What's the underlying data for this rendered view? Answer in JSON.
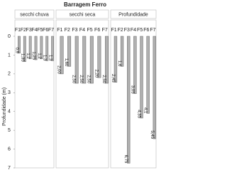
{
  "chart_data": [
    {
      "type": "bar",
      "suptitle": "Barragem Ferro",
      "ylabel": "Profundidade (m)",
      "title": "secchi chuva",
      "categories": [
        "F1",
        "F2",
        "F3",
        "F4",
        "F5",
        "F6",
        "F7"
      ],
      "values": [
        0.9,
        1.35,
        1.2,
        1.25,
        1.2,
        1.3,
        1.3
      ],
      "value_labels": [
        "0,9",
        "1,35",
        "1,2",
        "1,25",
        "1,2",
        "1,3",
        "1,3"
      ],
      "color": "#b0b0b0",
      "ylim": [
        0,
        7
      ],
      "yticks": [
        0,
        1,
        2,
        3,
        4,
        5,
        6,
        7
      ],
      "inverted": true
    },
    {
      "type": "bar",
      "title": "secchi seca",
      "categories": [
        "F1",
        "F2",
        "F3",
        "F4",
        "F5",
        "F6",
        "F7"
      ],
      "values": [
        2.0,
        1.6,
        2.5,
        2.5,
        2.5,
        2.2,
        2.5
      ],
      "value_labels": [
        "2,00",
        "1,60",
        "2,50",
        "2,50",
        "2,50",
        "2,20",
        "2,50"
      ],
      "color": "#b0b0b0",
      "ylim": [
        0,
        7
      ],
      "inverted": true
    },
    {
      "type": "bar",
      "title": "Profundidade",
      "categories": [
        "F1",
        "F2",
        "F3",
        "F4",
        "F5",
        "F6",
        "F7"
      ],
      "values": [
        2.45,
        1.6,
        6.75,
        3.05,
        4.35,
        4.1,
        5.45
      ],
      "value_labels": [
        "2,45",
        "1,6",
        "6,75",
        "3,05",
        "4,35",
        "4,1",
        "5,45"
      ],
      "color": "#b0b0b0",
      "ylim": [
        0,
        7
      ],
      "inverted": true
    }
  ]
}
